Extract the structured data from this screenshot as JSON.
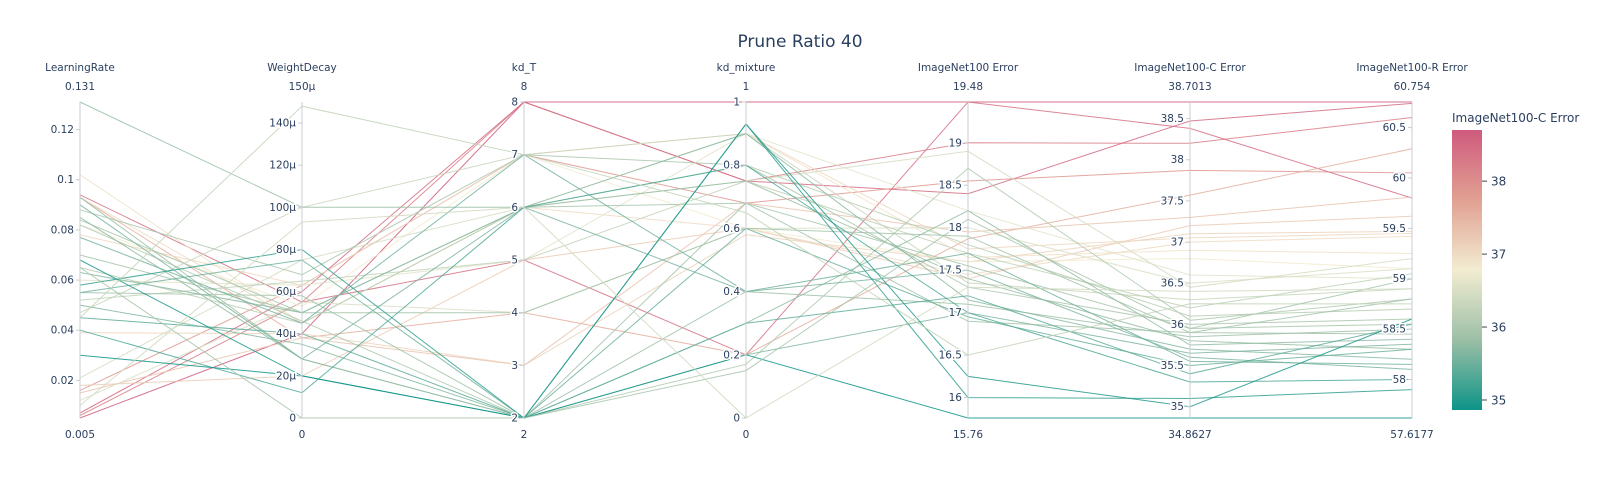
{
  "chart_data": {
    "type": "parallel_coordinates",
    "title": "Prune Ratio 40",
    "color_dimension": "ImageNet100-C Error",
    "colorbar": {
      "title": "ImageNet100-C Error",
      "ticks": [
        35,
        36,
        37,
        38
      ],
      "range": [
        34.8627,
        38.7013
      ],
      "colorscale": [
        "#0d9488",
        "#9cbfa6",
        "#f2ecd1",
        "#e1a092",
        "#cf5a7e"
      ]
    },
    "dimensions": [
      {
        "label": "LearningRate",
        "range": [
          0.005,
          0.131
        ],
        "range_labels": [
          "0.005",
          "0.131"
        ],
        "ticks": [
          0.02,
          0.04,
          0.06,
          0.08,
          0.1,
          0.12
        ],
        "tick_labels": [
          "0.02",
          "0.04",
          "0.06",
          "0.08",
          "0.1",
          "0.12"
        ]
      },
      {
        "label": "WeightDecay",
        "range": [
          0,
          0.00015
        ],
        "range_labels": [
          "0",
          "150µ"
        ],
        "ticks": [
          0,
          2e-05,
          4e-05,
          6e-05,
          8e-05,
          0.0001,
          0.00012,
          0.00014
        ],
        "tick_labels": [
          "0",
          "20µ",
          "40µ",
          "60µ",
          "80µ",
          "100µ",
          "120µ",
          "140µ"
        ]
      },
      {
        "label": "kd_T",
        "range": [
          2,
          8
        ],
        "range_labels": [
          "2",
          "8"
        ],
        "ticks": [
          2,
          3,
          4,
          5,
          6,
          7,
          8
        ],
        "tick_labels": [
          "2",
          "3",
          "4",
          "5",
          "6",
          "7",
          "8"
        ]
      },
      {
        "label": "kd_mixture",
        "range": [
          0,
          1
        ],
        "range_labels": [
          "0",
          "1"
        ],
        "ticks": [
          0,
          0.2,
          0.4,
          0.6,
          0.8,
          1
        ],
        "tick_labels": [
          "0",
          "0.2",
          "0.4",
          "0.6",
          "0.8",
          "1"
        ]
      },
      {
        "label": "ImageNet100 Error",
        "range": [
          15.76,
          19.48
        ],
        "range_labels": [
          "15.76",
          "19.48"
        ],
        "ticks": [
          16,
          16.5,
          17,
          17.5,
          18,
          18.5,
          19
        ],
        "tick_labels": [
          "16",
          "16.5",
          "17",
          "17.5",
          "18",
          "18.5",
          "19"
        ]
      },
      {
        "label": "ImageNet100-C Error",
        "range": [
          34.8627,
          38.7013
        ],
        "range_labels": [
          "34.8627",
          "38.7013"
        ],
        "ticks": [
          35,
          35.5,
          36,
          36.5,
          37,
          37.5,
          38,
          38.5
        ],
        "tick_labels": [
          "35",
          "35.5",
          "36",
          "36.5",
          "37",
          "37.5",
          "38",
          "38.5"
        ]
      },
      {
        "label": "ImageNet100-R Error",
        "range": [
          57.6177,
          60.754
        ],
        "range_labels": [
          "57.6177",
          "60.754"
        ],
        "ticks": [
          58,
          58.5,
          59,
          59.5,
          60,
          60.5
        ],
        "tick_labels": [
          "58",
          "58.5",
          "59",
          "59.5",
          "60",
          "60.5"
        ]
      }
    ],
    "rows": [
      [
        0.005,
        4e-05,
        8,
        1,
        19.48,
        38.7013,
        60.754
      ],
      [
        0.006,
        5.5e-05,
        8,
        0.75,
        19.0,
        38.2,
        60.6
      ],
      [
        0.007,
        6e-05,
        8,
        0.75,
        18.4,
        38.47,
        60.74
      ],
      [
        0.016,
        6.3e-05,
        7,
        0.68,
        18.55,
        37.87,
        60.05
      ],
      [
        0.094,
        5.5e-05,
        5,
        0.2,
        19.48,
        38.38,
        59.8
      ],
      [
        0.093,
        3.8e-05,
        4,
        0.2,
        17.87,
        37.57,
        60.29
      ],
      [
        0.015,
        3.8e-05,
        3,
        0.68,
        17.95,
        37.3,
        59.81
      ],
      [
        0.018,
        2e-05,
        5,
        0.6,
        17.4,
        37.2,
        59.62
      ],
      [
        0.039,
        4e-05,
        3,
        0.58,
        17.6,
        37.1,
        59.47
      ],
      [
        0.078,
        6.3e-05,
        7,
        0.9,
        17.75,
        37.05,
        59.45
      ],
      [
        0.102,
        4.5e-05,
        6,
        0.9,
        17.65,
        36.9,
        59.25
      ],
      [
        0.093,
        4.5e-05,
        6,
        0.6,
        17.45,
        37.0,
        59.42
      ],
      [
        0.082,
        5.3e-05,
        7,
        0.6,
        17.6,
        36.8,
        59.1
      ],
      [
        0.06,
        6.3e-05,
        5,
        0.9,
        18.2,
        36.6,
        59.0
      ],
      [
        0.021,
        7.5e-05,
        6,
        0.75,
        18.9,
        36.45,
        59.2
      ],
      [
        0.012,
        5.5e-05,
        4,
        0.6,
        18.0,
        36.5,
        59.1
      ],
      [
        0.047,
        0.0001,
        7,
        0.9,
        17.35,
        36.3,
        58.9
      ],
      [
        0.052,
        6.5e-05,
        5,
        0.75,
        17.7,
        36.2,
        59.05
      ],
      [
        0.065,
        4.5e-05,
        6,
        0.8,
        17.8,
        36.1,
        58.7
      ],
      [
        0.082,
        4.6e-05,
        2,
        0.17,
        18.7,
        36.05,
        58.8
      ],
      [
        0.088,
        6.8e-05,
        7,
        0.8,
        17.3,
        36.0,
        58.6
      ],
      [
        0.084,
        5e-05,
        6,
        0.68,
        17.55,
        35.95,
        58.55
      ],
      [
        0.055,
        5.8e-05,
        2,
        0.68,
        16.9,
        35.9,
        58.45
      ],
      [
        0.07,
        5e-05,
        4,
        0.6,
        17.9,
        35.9,
        58.8
      ],
      [
        0.093,
        2.8e-05,
        2,
        0.4,
        17.1,
        35.85,
        58.5
      ],
      [
        0.131,
        0.0001,
        6,
        0.75,
        17.4,
        35.8,
        58.3
      ],
      [
        0.085,
        2.8e-05,
        2,
        0.3,
        18.2,
        35.75,
        58.4
      ],
      [
        0.063,
        5e-05,
        6,
        0.9,
        17.15,
        35.7,
        58.2
      ],
      [
        0.05,
        3.5e-05,
        2,
        0.2,
        17.0,
        35.65,
        58.35
      ],
      [
        0.09,
        2.8e-05,
        6,
        0.4,
        17.5,
        35.6,
        58.1
      ],
      [
        0.077,
        4.5e-05,
        7,
        0.4,
        17.7,
        35.55,
        58.15
      ],
      [
        0.055,
        7.5e-05,
        2,
        0.6,
        16.95,
        35.5,
        58.3
      ],
      [
        0.045,
        4e-05,
        2,
        0.3,
        17.2,
        35.4,
        58.55
      ],
      [
        0.04,
        1.2e-05,
        6,
        0.8,
        17.0,
        35.3,
        58.0
      ],
      [
        0.058,
        8e-05,
        2,
        0.93,
        16.0,
        35.1,
        57.9
      ],
      [
        0.068,
        2e-05,
        2,
        0.93,
        16.25,
        35.0,
        58.6
      ],
      [
        0.03,
        2e-05,
        2,
        0.2,
        15.76,
        34.8627,
        57.6177
      ],
      [
        0.045,
        0.000148,
        7,
        0.65,
        16.5,
        36.25,
        58.75
      ],
      [
        0.065,
        0.0,
        2,
        0.15,
        18.1,
        35.95,
        59.0
      ],
      [
        0.01,
        9.3e-05,
        6,
        0.0,
        17.3,
        36.4,
        58.9
      ]
    ]
  }
}
